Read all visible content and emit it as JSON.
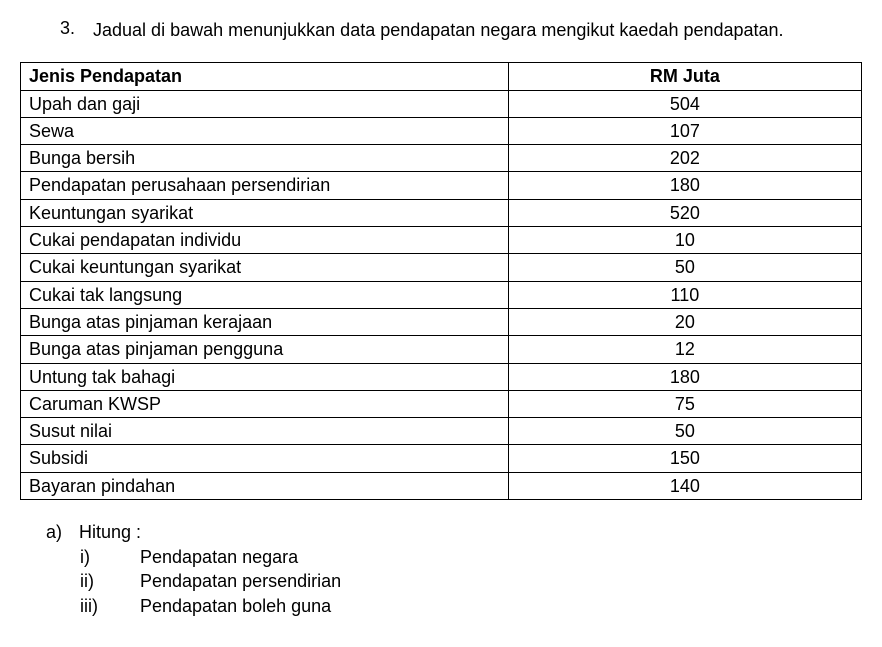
{
  "question": {
    "number": "3.",
    "text": "Jadual di bawah menunjukkan data pendapatan negara mengikut kaedah pendapatan."
  },
  "table": {
    "headers": {
      "label": "Jenis Pendapatan",
      "value": "RM Juta"
    },
    "rows": [
      {
        "label": "Upah dan gaji",
        "value": "504"
      },
      {
        "label": "Sewa",
        "value": "107"
      },
      {
        "label": "Bunga bersih",
        "value": "202"
      },
      {
        "label": "Pendapatan perusahaan persendirian",
        "value": "180"
      },
      {
        "label": "Keuntungan syarikat",
        "value": "520"
      },
      {
        "label": "Cukai pendapatan individu",
        "value": "10"
      },
      {
        "label": "Cukai keuntungan syarikat",
        "value": "50"
      },
      {
        "label": "Cukai tak langsung",
        "value": "110"
      },
      {
        "label": "Bunga atas pinjaman kerajaan",
        "value": "20"
      },
      {
        "label": "Bunga atas pinjaman pengguna",
        "value": "12"
      },
      {
        "label": "Untung tak bahagi",
        "value": "180"
      },
      {
        "label": "Caruman KWSP",
        "value": "75"
      },
      {
        "label": "Susut nilai",
        "value": "50"
      },
      {
        "label": "Subsidi",
        "value": "150"
      },
      {
        "label": "Bayaran pindahan",
        "value": "140"
      }
    ]
  },
  "subquestion": {
    "letter": "a)",
    "prompt": "Hitung :",
    "items": [
      {
        "roman": "i)",
        "label": "Pendapatan negara"
      },
      {
        "roman": "ii)",
        "label": "Pendapatan persendirian"
      },
      {
        "roman": "iii)",
        "label": "Pendapatan boleh guna"
      }
    ]
  }
}
